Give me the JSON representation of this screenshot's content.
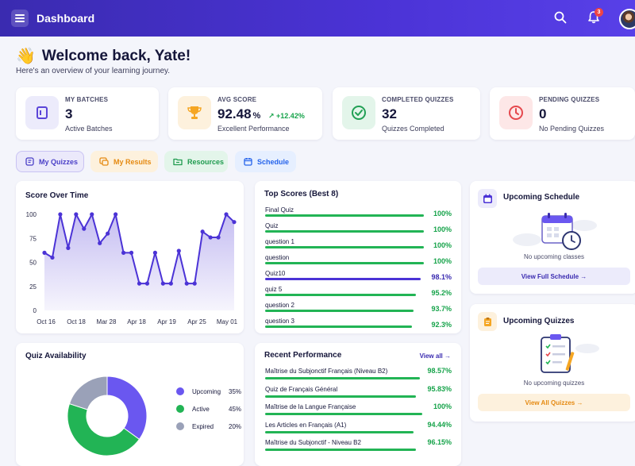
{
  "header": {
    "title": "Dashboard",
    "notification_count": "3"
  },
  "welcome": {
    "title": "Welcome back, Yate!",
    "subtitle": "Here's an overview of your learning journey."
  },
  "stats": [
    {
      "label": "MY BATCHES",
      "value": "3",
      "unit": "",
      "trend": "",
      "desc": "Active Batches",
      "color": "#5b45d8",
      "icon": "layers-icon"
    },
    {
      "label": "AVG SCORE",
      "value": "92.48",
      "unit": "%",
      "trend": "↗ +12.42%",
      "desc": "Excellent Performance",
      "color": "#f5a623",
      "icon": "trophy-icon"
    },
    {
      "label": "COMPLETED QUIZZES",
      "value": "32",
      "unit": "",
      "trend": "",
      "desc": "Quizzes Completed",
      "color": "#22a055",
      "icon": "check-circle-icon"
    },
    {
      "label": "PENDING QUIZZES",
      "value": "0",
      "unit": "",
      "trend": "",
      "desc": "No Pending Quizzes",
      "color": "#e5484d",
      "icon": "clock-icon"
    }
  ],
  "tabs": [
    {
      "label": "My Quizzes",
      "color": "#4a3fc7"
    },
    {
      "label": "My Results",
      "color": "#e58a12"
    },
    {
      "label": "Resources",
      "color": "#1f9b4f"
    },
    {
      "label": "Schedule",
      "color": "#2563eb"
    }
  ],
  "score_over_time": {
    "title": "Score Over Time",
    "chart_data": {
      "type": "area",
      "x_tick_labels": [
        "Oct 16",
        "Oct 18",
        "Mar 28",
        "Apr 18",
        "Apr 19",
        "Apr 25",
        "May 01"
      ],
      "y_tick_labels": [
        "0",
        "25",
        "50",
        "75",
        "100"
      ],
      "ylim": [
        0,
        100
      ],
      "values": [
        60,
        55,
        100,
        65,
        100,
        85,
        100,
        70,
        80,
        100,
        60,
        60,
        28,
        28,
        60,
        28,
        28,
        62,
        28,
        28,
        82,
        76,
        76,
        100,
        92
      ],
      "color": "#4b33d6"
    }
  },
  "top_scores": {
    "title": "Top Scores (Best 8)",
    "items": [
      {
        "label": "Final Quiz",
        "pct": "100%",
        "value": 100
      },
      {
        "label": "Quiz",
        "pct": "100%",
        "value": 100
      },
      {
        "label": "question 1",
        "pct": "100%",
        "value": 100
      },
      {
        "label": "question",
        "pct": "100%",
        "value": 100
      },
      {
        "label": "Quiz10",
        "pct": "98.1%",
        "value": 98.1
      },
      {
        "label": "quiz 5",
        "pct": "95.2%",
        "value": 95.2
      },
      {
        "label": "question 2",
        "pct": "93.7%",
        "value": 93.7
      },
      {
        "label": "question 3",
        "pct": "92.3%",
        "value": 92.3
      }
    ]
  },
  "upcoming_schedule": {
    "title": "Upcoming Schedule",
    "empty_text": "No upcoming classes",
    "button": "View Full Schedule →"
  },
  "quiz_availability": {
    "title": "Quiz Availability",
    "chart_data": {
      "type": "pie",
      "labels": [
        "Upcoming",
        "Active",
        "Expired"
      ],
      "values": [
        35,
        45,
        20
      ],
      "display": [
        "35%",
        "45%",
        "20%"
      ],
      "colors": [
        "#6a57f0",
        "#22b455",
        "#9aa1b8"
      ]
    }
  },
  "recent_performance": {
    "title": "Recent Performance",
    "view_all": "View all →",
    "items": [
      {
        "label": "Maîtrise du Subjonctif Français (Niveau B2)",
        "pct": "98.57%",
        "value": 98.57
      },
      {
        "label": "Quiz de Français Général",
        "pct": "95.83%",
        "value": 95.83
      },
      {
        "label": "Maîtrise de la Langue Française",
        "pct": "100%",
        "value": 100
      },
      {
        "label": "Les Articles en Français (A1)",
        "pct": "94.44%",
        "value": 94.44
      },
      {
        "label": "Maîtrise du Subjonctif - Niveau B2",
        "pct": "96.15%",
        "value": 96.15
      }
    ]
  },
  "upcoming_quizzes": {
    "title": "Upcoming Quizzes",
    "empty_text": "No upcoming quizzes",
    "button": "View All Quizzes →"
  }
}
